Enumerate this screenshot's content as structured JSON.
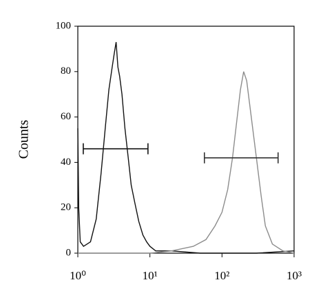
{
  "chart_data": {
    "type": "line",
    "ylabel": "Counts",
    "xscale": "log",
    "xlim": [
      1,
      1000
    ],
    "xticks": [
      {
        "value": 1,
        "label": "10⁰"
      },
      {
        "value": 10,
        "label": "10¹"
      },
      {
        "value": 100,
        "label": "10²"
      },
      {
        "value": 1000,
        "label": "10³"
      }
    ],
    "ylim": [
      0,
      100
    ],
    "yticks": [
      0,
      20,
      40,
      60,
      80,
      100
    ],
    "grid": false,
    "series": [
      {
        "color": "#111111",
        "x": [
          1.0,
          1.03,
          1.08,
          1.2,
          1.5,
          1.8,
          2.1,
          2.4,
          2.7,
          3.0,
          3.2,
          3.4,
          3.6,
          3.8,
          4.1,
          4.5,
          5.0,
          5.5,
          6.2,
          7.0,
          8.0,
          9.0,
          10,
          12,
          20,
          50,
          100,
          300,
          1000
        ],
        "values": [
          55,
          20,
          5,
          3,
          5,
          15,
          35,
          55,
          72,
          82,
          88,
          93,
          82,
          78,
          70,
          55,
          42,
          30,
          22,
          14,
          8,
          5,
          3,
          1,
          1,
          0,
          0,
          0,
          1
        ]
      },
      {
        "color": "#8c8c8c",
        "x": [
          1,
          10,
          20,
          40,
          60,
          80,
          100,
          120,
          140,
          160,
          180,
          200,
          220,
          250,
          300,
          350,
          400,
          500,
          700,
          1000
        ],
        "values": [
          0,
          0,
          1,
          3,
          6,
          12,
          18,
          28,
          42,
          58,
          72,
          80,
          76,
          62,
          42,
          25,
          12,
          4,
          1,
          0
        ]
      }
    ],
    "gates": [
      {
        "x": [
          1.19,
          9.4
        ],
        "y": 46,
        "color": "#111111"
      },
      {
        "x": [
          57,
          600
        ],
        "y": 42,
        "color": "#333333"
      }
    ]
  }
}
